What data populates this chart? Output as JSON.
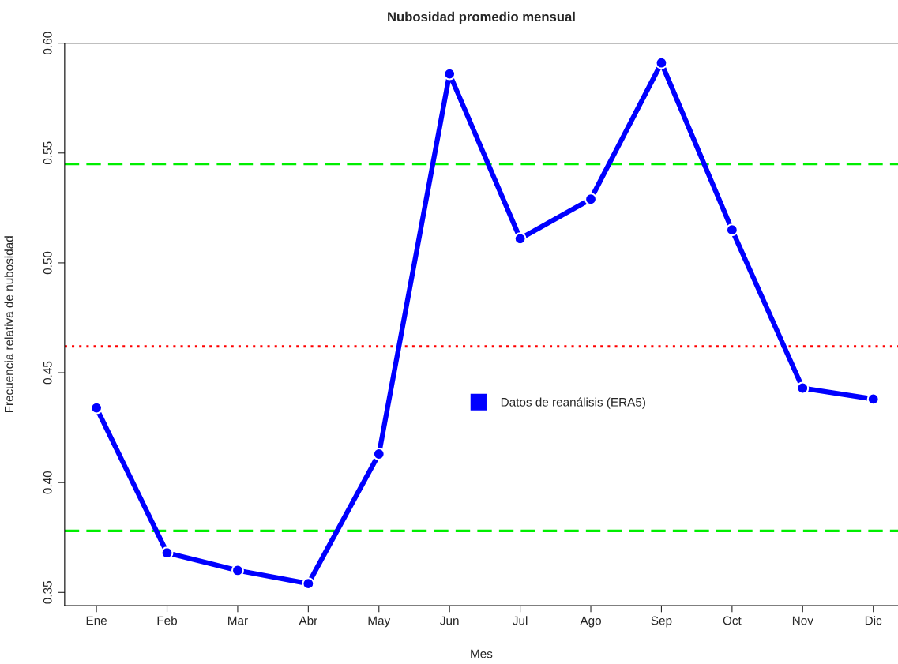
{
  "chart_data": {
    "type": "line",
    "title": "Nubosidad promedio mensual",
    "xlabel": "Mes",
    "ylabel": "Frecuencia relativa de nubosidad",
    "categories": [
      "Ene",
      "Feb",
      "Mar",
      "Abr",
      "May",
      "Jun",
      "Jul",
      "Ago",
      "Sep",
      "Oct",
      "Nov",
      "Dic"
    ],
    "series": [
      {
        "name": "Datos de reanálisis (ERA5)",
        "color": "#0000ff",
        "values": [
          0.434,
          0.368,
          0.36,
          0.354,
          0.413,
          0.586,
          0.511,
          0.529,
          0.591,
          0.515,
          0.443,
          0.438
        ]
      }
    ],
    "ylim": [
      0.344,
      0.6
    ],
    "yticks": [
      {
        "value": 0.35,
        "label": "0.35"
      },
      {
        "value": 0.4,
        "label": "0.40"
      },
      {
        "value": 0.45,
        "label": "0.45"
      },
      {
        "value": 0.5,
        "label": "0.50"
      },
      {
        "value": 0.55,
        "label": "0.55"
      },
      {
        "value": 0.6,
        "label": "0.60"
      }
    ],
    "ref_lines": [
      {
        "axis": "y",
        "value": 0.545,
        "color": "#00ee00",
        "line_style": "dashed"
      },
      {
        "axis": "y",
        "value": 0.378,
        "color": "#00ee00",
        "line_style": "dashed"
      },
      {
        "axis": "y",
        "value": 0.462,
        "color": "#ff0000",
        "line_style": "dotted"
      }
    ],
    "marker": "circle",
    "line_style": "solid",
    "grid": false,
    "legend": "center"
  }
}
